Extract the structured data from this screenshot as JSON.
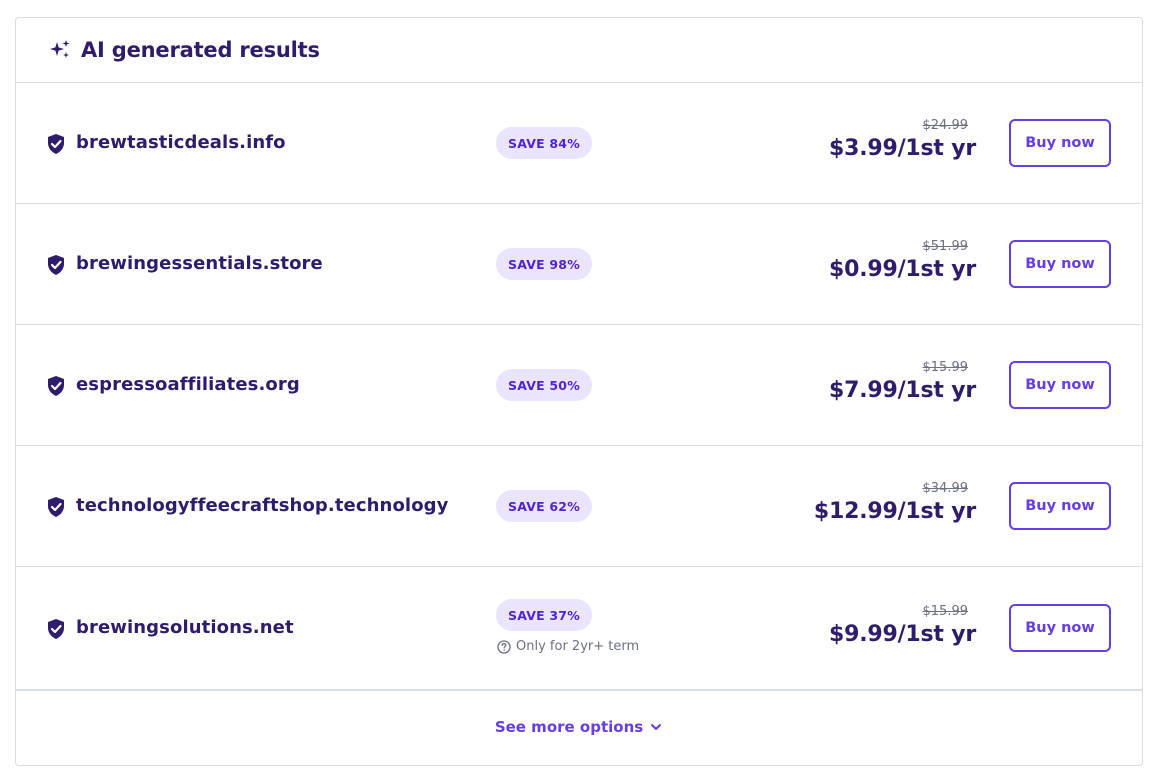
{
  "header": {
    "title": "AI generated results",
    "icon": "sparkle-icon"
  },
  "results": [
    {
      "domain": "brewtasticdeals.info",
      "save": "SAVE 84%",
      "old_price": "$24.99",
      "price": "$3.99/1st yr",
      "buy_label": "Buy now"
    },
    {
      "domain": "brewingessentials.store",
      "save": "SAVE 98%",
      "old_price": "$51.99",
      "price": "$0.99/1st yr",
      "buy_label": "Buy now"
    },
    {
      "domain": "espressoaffiliates.org",
      "save": "SAVE 50%",
      "old_price": "$15.99",
      "price": "$7.99/1st yr",
      "buy_label": "Buy now"
    },
    {
      "domain": "technologyffeecraftshop.technology",
      "save": "SAVE 62%",
      "old_price": "$34.99",
      "price": "$12.99/1st yr",
      "buy_label": "Buy now"
    },
    {
      "domain": "brewingsolutions.net",
      "save": "SAVE 37%",
      "note": "Only for 2yr+ term",
      "old_price": "$15.99",
      "price": "$9.99/1st yr",
      "buy_label": "Buy now"
    }
  ],
  "footer": {
    "more_label": "See more options"
  },
  "colors": {
    "primary": "#673de6",
    "text": "#2f1c6a",
    "badge_bg": "#ebe4ff",
    "muted": "#6d7081"
  }
}
